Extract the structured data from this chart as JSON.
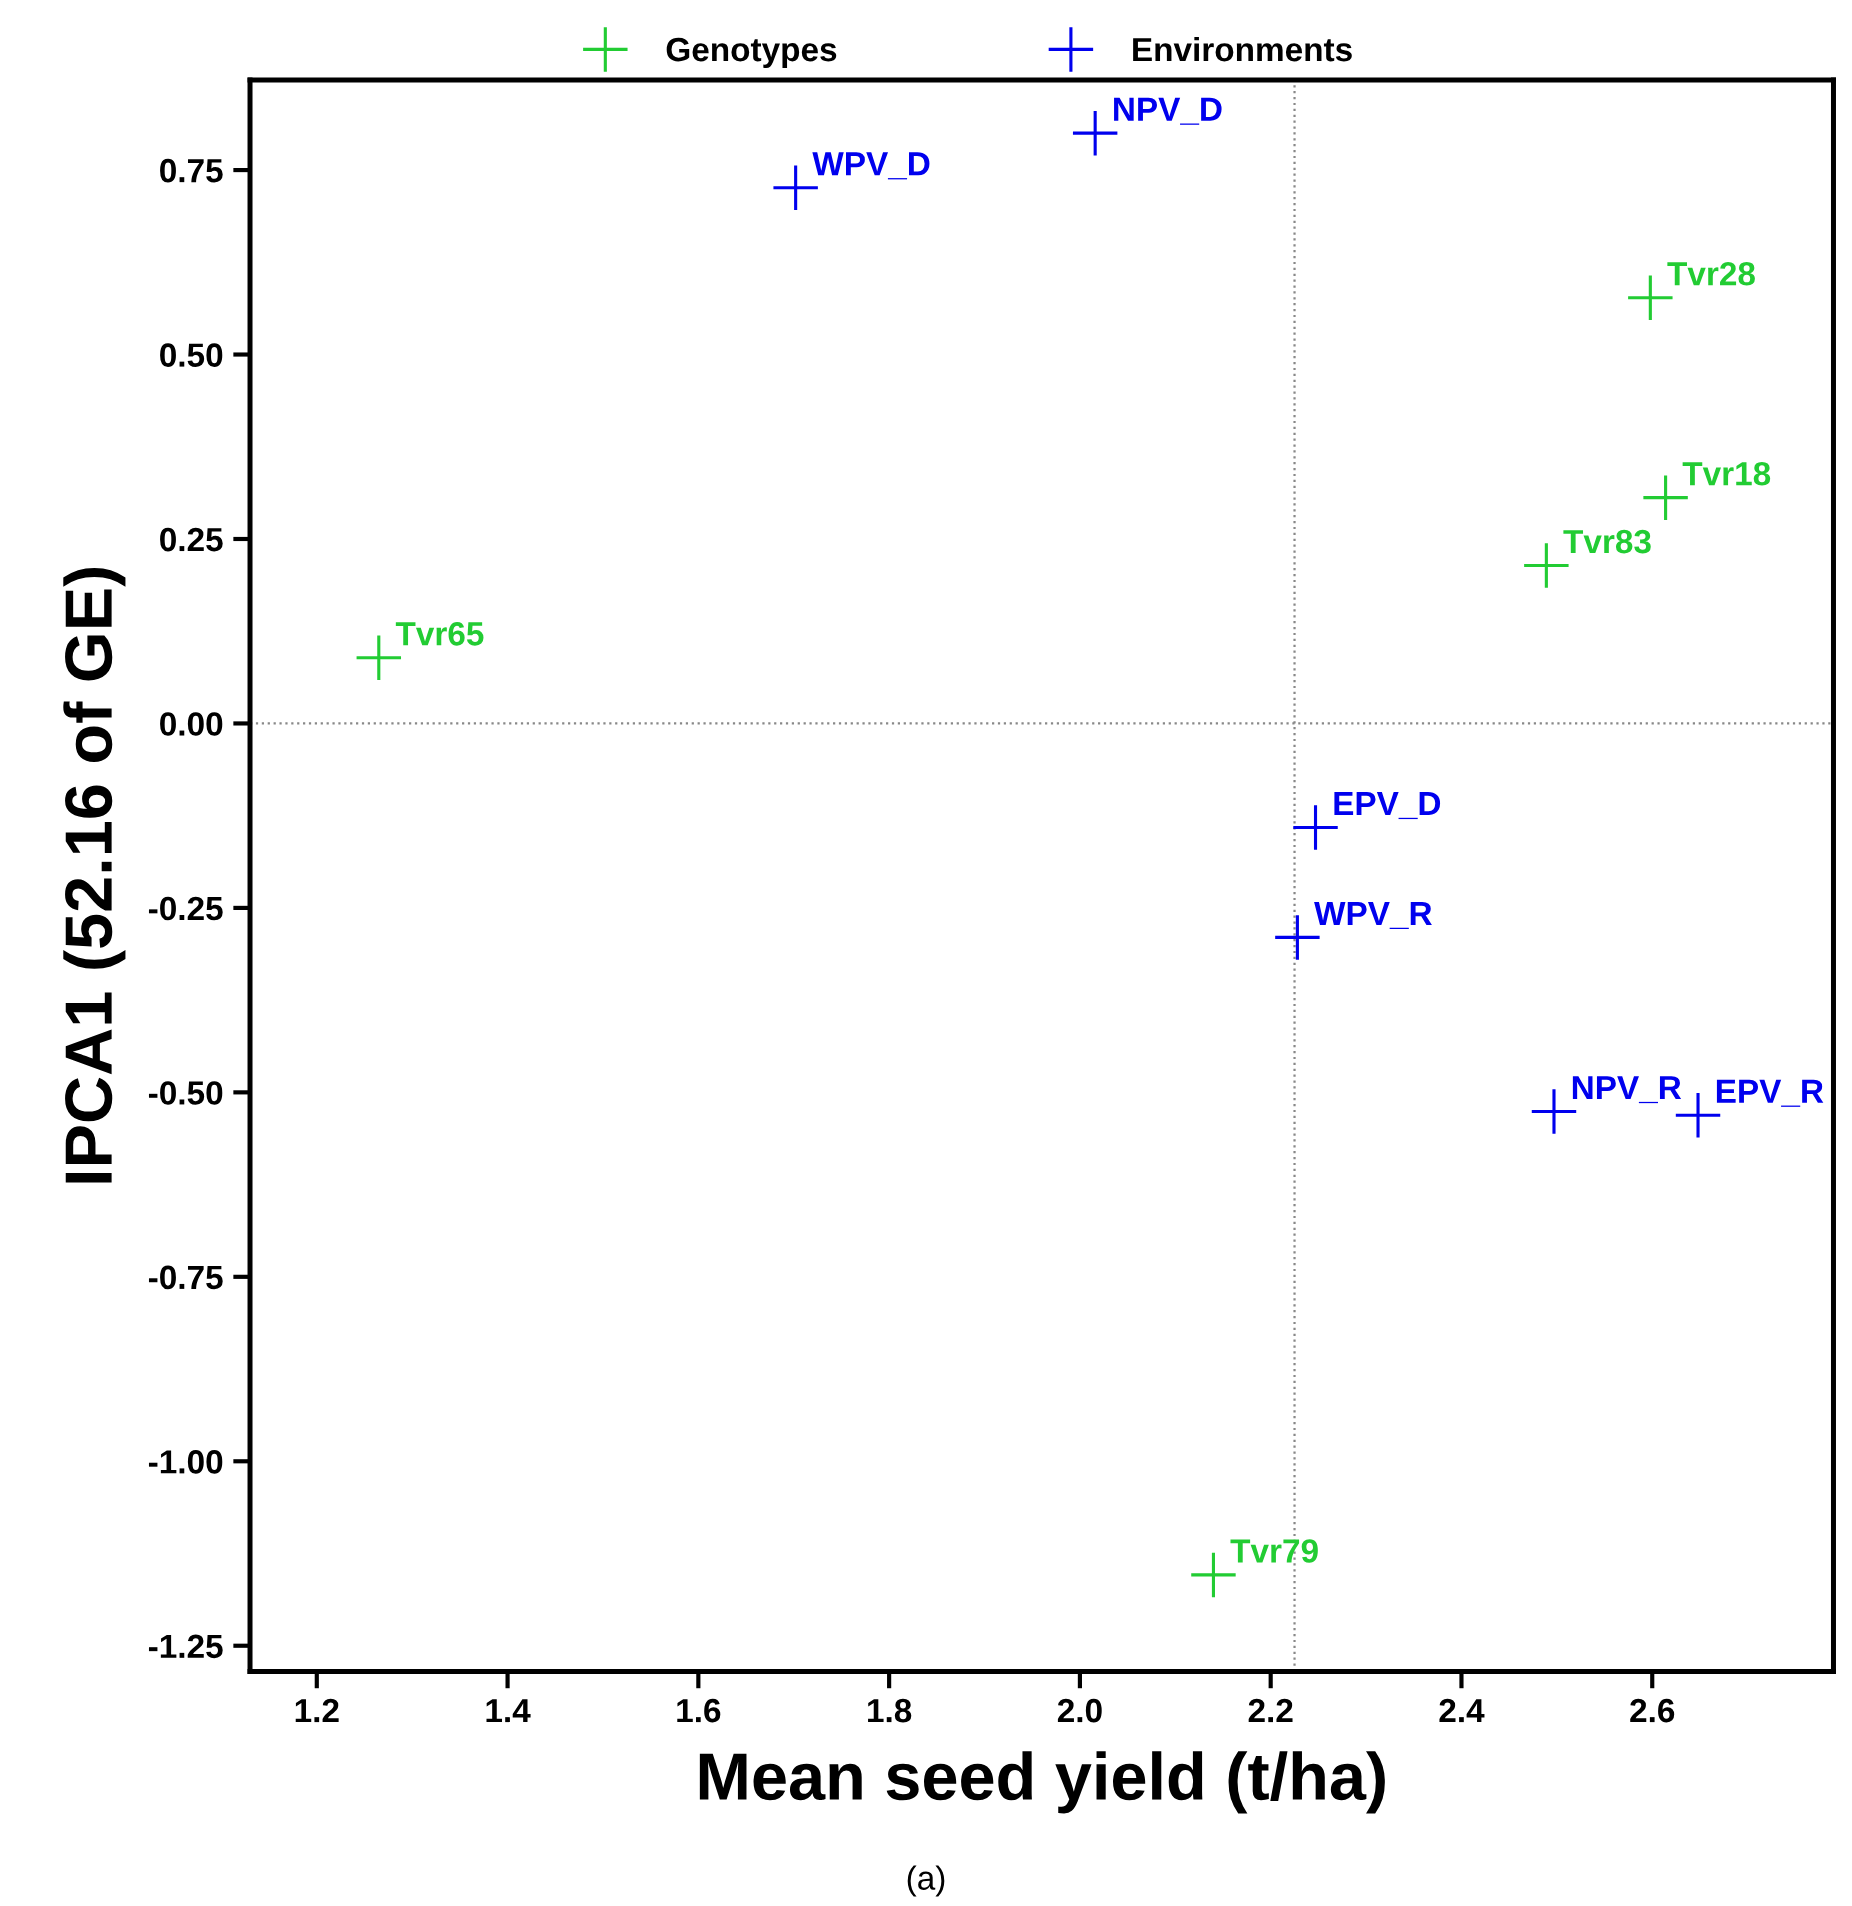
{
  "chart_data": {
    "type": "scatter",
    "xlabel": "Mean seed yield (t/ha)",
    "ylabel": "IPCA1 (52.16 of GE)",
    "series": [
      {
        "name": "Genotypes",
        "color": "#22cc33",
        "x": [
          1.265,
          2.598,
          2.614,
          2.489,
          2.14
        ],
        "values": [
          0.089,
          0.577,
          0.306,
          0.214,
          -1.154
        ]
      },
      {
        "name": "Environments",
        "color": "#0000ee",
        "x": [
          1.702,
          2.016,
          2.247,
          2.228,
          2.497,
          2.648
        ],
        "values": [
          0.726,
          0.8,
          -0.141,
          -0.29,
          -0.526,
          -0.531
        ]
      }
    ],
    "annotations": [
      {
        "text": "Tvr65",
        "x": 1.265,
        "y": 0.089
      },
      {
        "text": "Tvr28",
        "x": 2.598,
        "y": 0.577
      },
      {
        "text": "Tvr18",
        "x": 2.614,
        "y": 0.306
      },
      {
        "text": "Tvr83",
        "x": 2.489,
        "y": 0.214
      },
      {
        "text": "Tvr79",
        "x": 2.14,
        "y": -1.154
      },
      {
        "text": "WPV_D",
        "x": 1.702,
        "y": 0.726
      },
      {
        "text": "NPV_D",
        "x": 2.016,
        "y": 0.8
      },
      {
        "text": "EPV_D",
        "x": 2.247,
        "y": -0.141
      },
      {
        "text": "WPV_R",
        "x": 2.228,
        "y": -0.29
      },
      {
        "text": "NPV_R",
        "x": 2.497,
        "y": -0.526
      },
      {
        "text": "EPV_R",
        "x": 2.648,
        "y": -0.531
      },
      "(a)"
    ],
    "ref_lines": [
      {
        "axis": "x",
        "value": 2.225,
        "color": "#888888",
        "line_style": "dotted"
      },
      {
        "axis": "y",
        "value": 0,
        "color": "#888888",
        "line_style": "dotted"
      }
    ],
    "xlim": [
      1.13,
      2.79
    ],
    "ylim": [
      -1.285,
      0.872
    ],
    "xticks": [
      {
        "value": 1.2,
        "label": "1.2"
      },
      {
        "value": 1.4,
        "label": "1.4"
      },
      {
        "value": 1.6,
        "label": "1.6"
      },
      {
        "value": 1.8,
        "label": "1.8"
      },
      {
        "value": 2.0,
        "label": "2.0"
      },
      {
        "value": 2.2,
        "label": "2.2"
      },
      {
        "value": 2.4,
        "label": "2.4"
      },
      {
        "value": 2.6,
        "label": "2.6"
      }
    ],
    "yticks": [
      {
        "value": 0.75,
        "label": "0.75"
      },
      {
        "value": 0.5,
        "label": "0.50"
      },
      {
        "value": 0.25,
        "label": "0.25"
      },
      {
        "value": 0,
        "label": "0.00"
      },
      {
        "value": -0.25,
        "label": "-0.25"
      },
      {
        "value": -0.5,
        "label": "-0.50"
      },
      {
        "value": -0.75,
        "label": "-0.75"
      },
      {
        "value": -1.0,
        "label": "-1.00"
      },
      {
        "value": -1.25,
        "label": "-1.25"
      }
    ],
    "marker": "cross",
    "grid": false,
    "legend": "top"
  }
}
